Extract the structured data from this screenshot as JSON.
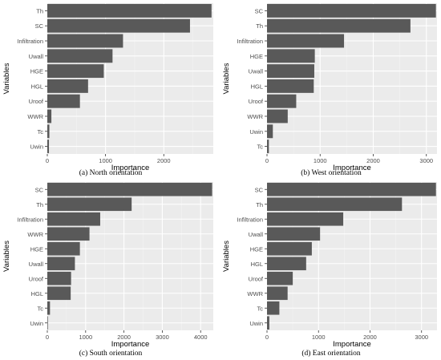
{
  "style": {
    "panel_background": "#ebebeb",
    "grid_major": "#ffffff",
    "grid_minor": "#f3f3f3",
    "bar_fill": "#595959",
    "text_color": "#4d4d4d",
    "title_color": "#000000"
  },
  "chart_data": [
    {
      "type": "bar",
      "orientation": "horizontal",
      "caption": "(a) North orientation",
      "xlabel": "Importance",
      "ylabel": "Variables",
      "xlim": [
        0,
        2850
      ],
      "xticks": [
        0,
        1000,
        2000
      ],
      "grid": true,
      "categories": [
        "Th",
        "SC",
        "Infiltration",
        "Uwall",
        "HGE",
        "HGL",
        "Uroof",
        "WWR",
        "Tc",
        "Uwin"
      ],
      "values": [
        2820,
        2450,
        1300,
        1120,
        970,
        700,
        560,
        70,
        35,
        28
      ]
    },
    {
      "type": "bar",
      "orientation": "horizontal",
      "caption": "(b) West orientation",
      "xlabel": "Importance",
      "ylabel": "Variables",
      "xlim": [
        0,
        3200
      ],
      "xticks": [
        0,
        1000,
        2000,
        3000
      ],
      "grid": true,
      "categories": [
        "SC",
        "Th",
        "Infiltration",
        "HGE",
        "Uwall",
        "HGL",
        "Uroof",
        "WWR",
        "Uwin",
        "Tc"
      ],
      "values": [
        3180,
        2700,
        1450,
        900,
        890,
        880,
        550,
        390,
        110,
        35
      ]
    },
    {
      "type": "bar",
      "orientation": "horizontal",
      "caption": "(c) South orientation",
      "xlabel": "Importance",
      "ylabel": "Variables",
      "xlim": [
        0,
        4330
      ],
      "xticks": [
        0,
        1000,
        2000,
        3000,
        4000
      ],
      "grid": true,
      "categories": [
        "SC",
        "Th",
        "Infiltration",
        "WWR",
        "HGE",
        "Uwall",
        "Uroof",
        "HGL",
        "Tc",
        "Uwin"
      ],
      "values": [
        4300,
        2200,
        1380,
        1100,
        850,
        720,
        620,
        610,
        70,
        15
      ]
    },
    {
      "type": "bar",
      "orientation": "horizontal",
      "caption": "(d) East orientation",
      "xlabel": "Importance",
      "ylabel": "Variables",
      "xlim": [
        0,
        3300
      ],
      "xticks": [
        0,
        1000,
        2000,
        3000
      ],
      "grid": true,
      "categories": [
        "SC",
        "Th",
        "Infiltration",
        "Uwall",
        "HGE",
        "HGL",
        "Uroof",
        "WWR",
        "Tc",
        "Uwin"
      ],
      "values": [
        3280,
        2620,
        1480,
        1030,
        870,
        760,
        500,
        400,
        240,
        45
      ]
    }
  ]
}
